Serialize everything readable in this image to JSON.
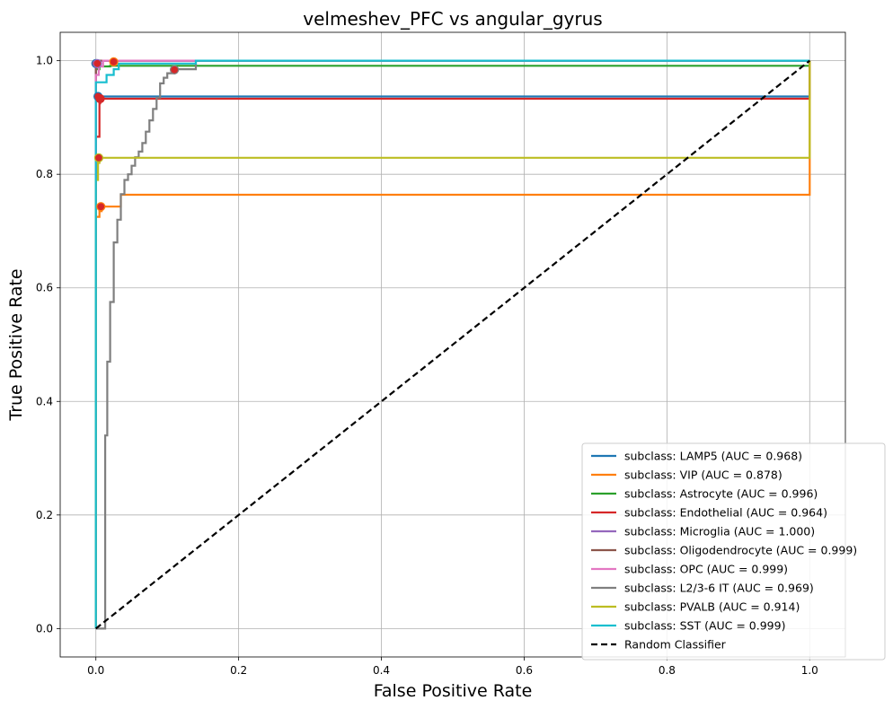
{
  "chart_data": {
    "type": "line",
    "title": "velmeshev_PFC vs angular_gyrus",
    "xlabel": "False Positive Rate",
    "ylabel": "True Positive Rate",
    "xlim": [
      -0.05,
      1.05
    ],
    "ylim": [
      -0.05,
      1.05
    ],
    "xticks": [
      "0.0",
      "0.2",
      "0.4",
      "0.6",
      "0.8",
      "1.0"
    ],
    "yticks": [
      "0.0",
      "0.2",
      "0.4",
      "0.6",
      "0.8",
      "1.0"
    ],
    "grid": true,
    "legend_position": "lower-right",
    "series": [
      {
        "name": "subclass: LAMP5 (AUC = 0.968)",
        "color": "#1f77b4",
        "x": [
          0,
          0,
          0.003,
          0.003,
          1.0,
          1.0
        ],
        "y": [
          0,
          0.93,
          0.93,
          0.937,
          0.937,
          1.0
        ]
      },
      {
        "name": "subclass: VIP (AUC = 0.878)",
        "color": "#ff7f0e",
        "x": [
          0,
          0,
          0.005,
          0.005,
          0.008,
          0.008,
          0.035,
          0.035,
          1.0,
          1.0
        ],
        "y": [
          0,
          0.725,
          0.725,
          0.735,
          0.735,
          0.743,
          0.743,
          0.764,
          0.764,
          1.0
        ]
      },
      {
        "name": "subclass: Astrocyte (AUC = 0.996)",
        "color": "#2ca02c",
        "x": [
          0,
          0,
          0.005,
          0.005,
          0.02,
          0.02,
          1.0,
          1.0
        ],
        "y": [
          0,
          0.985,
          0.985,
          0.99,
          0.99,
          0.991,
          0.991,
          1.0
        ]
      },
      {
        "name": "subclass: Endothelial (AUC = 0.964)",
        "color": "#d62728",
        "x": [
          0,
          0,
          0.005,
          0.005,
          0.006,
          0.006,
          1.0,
          1.0
        ],
        "y": [
          0,
          0.866,
          0.866,
          0.925,
          0.925,
          0.933,
          0.933,
          1.0
        ]
      },
      {
        "name": "subclass: Microglia (AUC = 1.000)",
        "color": "#9467bd",
        "x": [
          0,
          0,
          1.0
        ],
        "y": [
          0,
          1.0,
          1.0
        ]
      },
      {
        "name": "subclass: Oligodendrocyte (AUC = 0.999)",
        "color": "#8c564b",
        "x": [
          0,
          0,
          0.004,
          0.004,
          1.0
        ],
        "y": [
          0,
          0.995,
          0.995,
          1.0,
          1.0
        ]
      },
      {
        "name": "subclass: OPC (AUC = 0.999)",
        "color": "#e377c2",
        "x": [
          0,
          0,
          0.004,
          0.004,
          0.01,
          0.01,
          1.0
        ],
        "y": [
          0,
          0.975,
          0.975,
          0.99,
          0.99,
          1.0,
          1.0
        ]
      },
      {
        "name": "subclass: L2/3-6 IT (AUC = 0.969)",
        "color": "#7f7f7f",
        "x": [
          0,
          0.013,
          0.013,
          0.016,
          0.016,
          0.02,
          0.02,
          0.025,
          0.025,
          0.03,
          0.03,
          0.035,
          0.035,
          0.04,
          0.04,
          0.045,
          0.045,
          0.05,
          0.05,
          0.055,
          0.055,
          0.06,
          0.06,
          0.065,
          0.065,
          0.07,
          0.07,
          0.075,
          0.075,
          0.08,
          0.08,
          0.085,
          0.085,
          0.09,
          0.09,
          0.095,
          0.095,
          0.1,
          0.1,
          0.11,
          0.11,
          0.14,
          0.14,
          1.0
        ],
        "y": [
          0,
          0,
          0.34,
          0.34,
          0.47,
          0.47,
          0.575,
          0.575,
          0.68,
          0.68,
          0.72,
          0.72,
          0.765,
          0.765,
          0.79,
          0.79,
          0.8,
          0.8,
          0.815,
          0.815,
          0.83,
          0.83,
          0.84,
          0.84,
          0.855,
          0.855,
          0.875,
          0.875,
          0.895,
          0.895,
          0.915,
          0.915,
          0.935,
          0.935,
          0.96,
          0.96,
          0.97,
          0.97,
          0.978,
          0.978,
          0.985,
          0.985,
          1.0,
          1.0
        ]
      },
      {
        "name": "subclass: PVALB (AUC = 0.914)",
        "color": "#bcbd22",
        "x": [
          0,
          0,
          0.003,
          0.003,
          0.005,
          0.005,
          1.0,
          1.0
        ],
        "y": [
          0,
          0.79,
          0.79,
          0.82,
          0.82,
          0.829,
          0.829,
          1.0
        ]
      },
      {
        "name": "subclass: SST (AUC = 0.999)",
        "color": "#17becf",
        "x": [
          0,
          0,
          0.015,
          0.015,
          0.025,
          0.025,
          0.032,
          0.032,
          0.14,
          0.14,
          1.0
        ],
        "y": [
          0,
          0.962,
          0.962,
          0.975,
          0.975,
          0.985,
          0.985,
          0.995,
          0.995,
          1.0,
          1.0
        ]
      },
      {
        "name": "Random Classifier",
        "color": "#000000",
        "dashed": true,
        "x": [
          0,
          1
        ],
        "y": [
          0,
          1
        ]
      }
    ],
    "markers": [
      {
        "x": 0.0,
        "y": 0.995,
        "color": "#1f77b4"
      },
      {
        "x": 0.002,
        "y": 0.995,
        "color": "#9467bd"
      },
      {
        "x": 0.025,
        "y": 0.998,
        "color": "#ff7f0e"
      },
      {
        "x": 0.003,
        "y": 0.937,
        "color": "#1f77b4"
      },
      {
        "x": 0.006,
        "y": 0.933,
        "color": "#d62728"
      },
      {
        "x": 0.004,
        "y": 0.829,
        "color": "#bcbd22"
      },
      {
        "x": 0.007,
        "y": 0.743,
        "color": "#ff7f0e"
      },
      {
        "x": 0.11,
        "y": 0.984,
        "color": "#7f7f7f"
      }
    ]
  }
}
